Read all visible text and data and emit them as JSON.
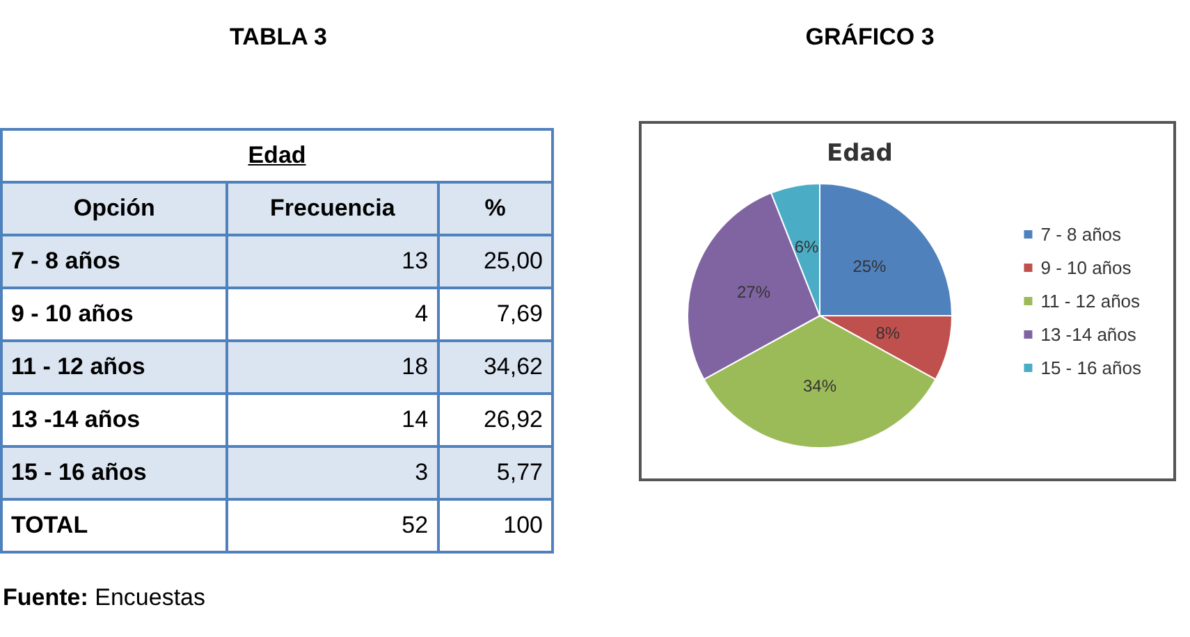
{
  "chart_data": [
    {
      "type": "other",
      "title": "TABLA 3",
      "subtitle": "Edad",
      "xlabel": "Opción",
      "categories": [
        "7 - 8 años",
        "9 - 10 años",
        "11 - 12 años",
        "13 -14 años",
        "15 - 16 años",
        "TOTAL"
      ],
      "series": [
        {
          "name": "Frecuencia",
          "values": [
            13,
            4,
            18,
            14,
            3,
            52
          ],
          "colors": [
            "#dbe5f1",
            "#ffffff",
            "#dbe5f1",
            "#ffffff",
            "#dbe5f1",
            "#ffffff"
          ]
        },
        {
          "name": "%",
          "values": [
            25.0,
            7.69,
            34.62,
            26.92,
            5.77,
            100
          ],
          "value_labels": [
            "25,00",
            "7,69",
            "34,62",
            "26,92",
            "5,77",
            "100"
          ],
          "colors": [
            "#dbe5f1",
            "#ffffff",
            "#dbe5f1",
            "#ffffff",
            "#dbe5f1",
            "#ffffff"
          ]
        }
      ],
      "annotations": [
        "Fuente: Encuestas"
      ],
      "data_labels": true
    },
    {
      "type": "pie",
      "title": "GRÁFICO 3",
      "subtitle": "Edad",
      "categories": [
        "7 - 8 años",
        "9 - 10 años",
        "11 - 12 años",
        "13 -14 años",
        "15 - 16 años"
      ],
      "values": [
        25,
        8,
        34,
        27,
        6
      ],
      "value_labels": [
        "25%",
        "8%",
        "34%",
        "27%",
        "6%"
      ],
      "colors": [
        "#4f81bd",
        "#c0504d",
        "#9bbb59",
        "#8064a2",
        "#4bacc6"
      ],
      "legend": "right"
    }
  ]
}
